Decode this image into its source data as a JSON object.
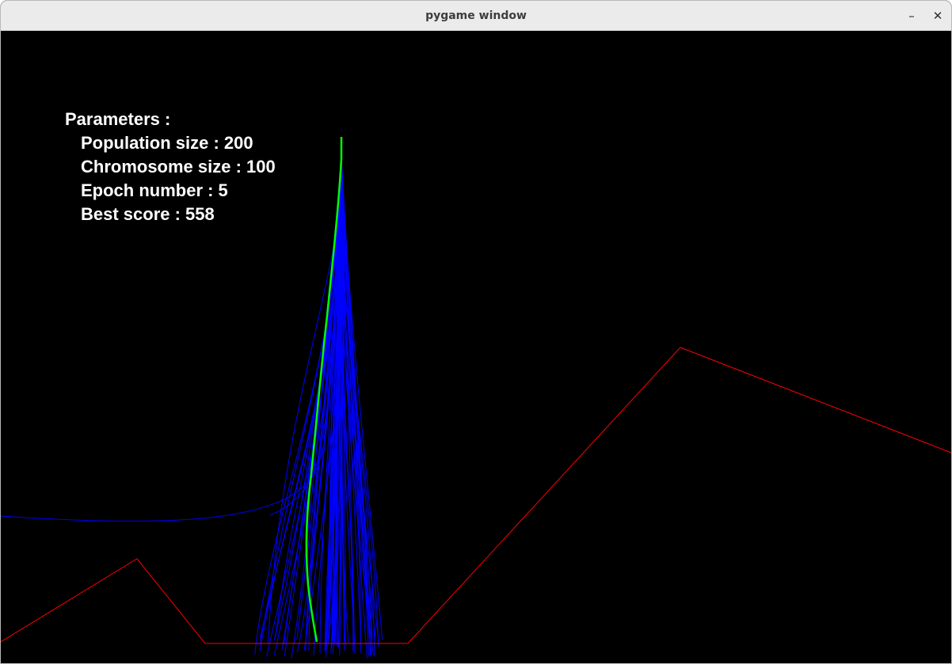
{
  "window": {
    "title": "pygame window",
    "minimize_label": "–",
    "close_label": "✕"
  },
  "parameters": {
    "heading": "Parameters :",
    "population_size": "Population size : 200",
    "chromosome_size": "Chromosome size : 100",
    "epoch_number": "Epoch number : 5",
    "best_score": "Best score : 558"
  },
  "simulation": {
    "population": 200,
    "chromosome_size": 100,
    "epoch": 5,
    "best_score": 558,
    "colors": {
      "background": "#000000",
      "terrain": "#ff0000",
      "population_paths": "#0000ff",
      "best_path": "#00ff00"
    }
  }
}
